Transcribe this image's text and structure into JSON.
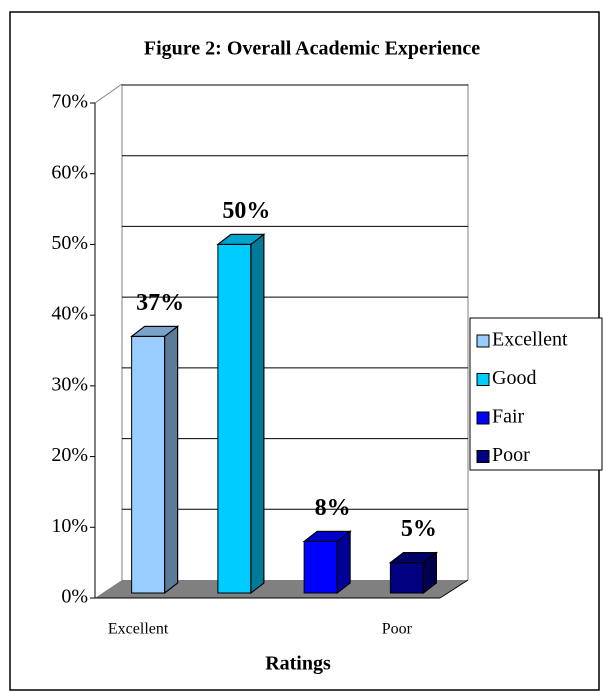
{
  "chart_data": {
    "type": "bar3d",
    "title": "Figure 2:  Overall Academic Experience",
    "x_label": "Ratings",
    "categories": [
      "Excellent",
      null,
      null,
      "Poor"
    ],
    "series": [
      {
        "name": "Excellent",
        "color": "#99ccff",
        "values": [
          37,
          null,
          null,
          null
        ],
        "value_labels": [
          "37%",
          null,
          null,
          null
        ]
      },
      {
        "name": "Good",
        "color": "#00ccff",
        "values": [
          null,
          50,
          null,
          null
        ],
        "value_labels": [
          null,
          "50%",
          null,
          null
        ]
      },
      {
        "name": "Fair",
        "color": "#0000ff",
        "values": [
          null,
          null,
          8,
          null
        ],
        "value_labels": [
          null,
          null,
          "8%",
          null
        ]
      },
      {
        "name": "Poor",
        "color": "#000080",
        "values": [
          null,
          null,
          null,
          5
        ],
        "value_labels": [
          null,
          null,
          null,
          "5%"
        ]
      }
    ],
    "ylim": [
      0,
      70
    ],
    "yticks": [
      {
        "value": 0,
        "label": "0%"
      },
      {
        "value": 10,
        "label": "10%"
      },
      {
        "value": 20,
        "label": "20%"
      },
      {
        "value": 30,
        "label": "30%"
      },
      {
        "value": 40,
        "label": "40%"
      },
      {
        "value": 50,
        "label": "50%"
      },
      {
        "value": 60,
        "label": "60%"
      },
      {
        "value": 70,
        "label": "70%"
      }
    ],
    "grid": true,
    "legend": "right"
  }
}
